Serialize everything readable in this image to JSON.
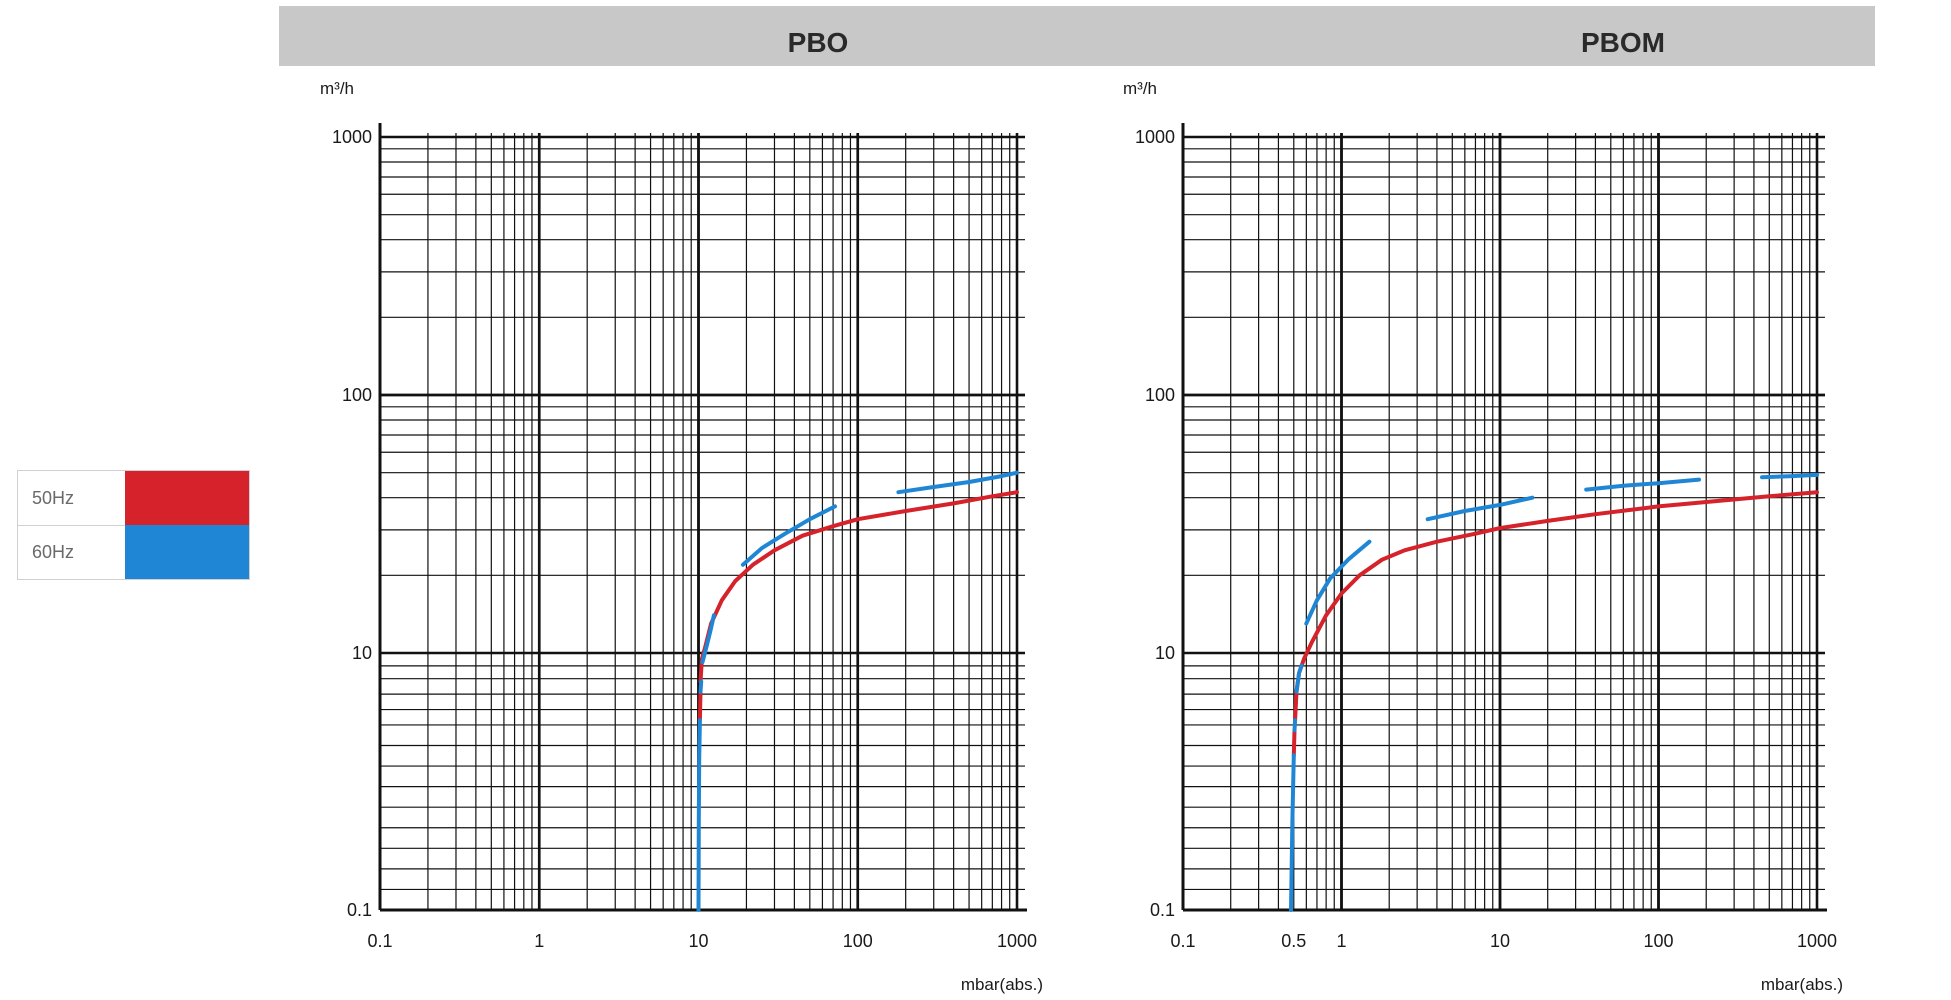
{
  "panels": [
    {
      "title": "PBO"
    },
    {
      "title": "PBOM"
    }
  ],
  "legend": [
    {
      "label": "50Hz",
      "color": "#d6222b"
    },
    {
      "label": "60Hz",
      "color": "#1e86d4"
    }
  ],
  "chart_data": [
    {
      "type": "line",
      "title": "PBO",
      "x_scale": "log",
      "y_scale": "log",
      "xlim": [
        0.1,
        1000
      ],
      "ylim": [
        0.1,
        1000
      ],
      "x_ticks": [
        "0.1",
        "1",
        "10",
        "100",
        "1000"
      ],
      "y_ticks": [
        "0.1",
        "10",
        "100",
        "1000"
      ],
      "xlabel": "mbar(abs.)",
      "ylabel": "m³/h",
      "grid": true,
      "series": [
        {
          "name": "50Hz",
          "color": "#d6222b",
          "segments": [
            [
              [
                10.2,
                3.0
              ],
              [
                10.3,
                5.0
              ]
            ],
            [
              [
                10.3,
                6.0
              ],
              [
                10.5,
                9.0
              ],
              [
                11,
                10.5
              ],
              [
                12,
                13
              ],
              [
                14,
                16
              ],
              [
                17,
                19
              ],
              [
                22,
                22
              ],
              [
                30,
                25
              ],
              [
                45,
                28.5
              ],
              [
                70,
                31
              ],
              [
                100,
                33
              ],
              [
                200,
                35.5
              ],
              [
                400,
                38
              ],
              [
                700,
                40.5
              ],
              [
                1000,
                42
              ]
            ]
          ]
        },
        {
          "name": "60Hz",
          "color": "#1e86d4",
          "segments": [
            [
              [
                10.0,
                0.1
              ],
              [
                10.05,
                0.5
              ],
              [
                10.1,
                1.5
              ],
              [
                10.2,
                3.0
              ]
            ],
            [
              [
                10.3,
                5.0
              ],
              [
                10.4,
                6.0
              ]
            ],
            [
              [
                10.6,
                8.5
              ],
              [
                11.2,
                10.5
              ],
              [
                12,
                12.5
              ],
              [
                12.5,
                14
              ]
            ],
            [
              [
                19,
                22
              ],
              [
                25,
                25.5
              ],
              [
                35,
                29
              ],
              [
                50,
                33
              ],
              [
                72,
                37
              ]
            ],
            [
              [
                180,
                42
              ],
              [
                300,
                44
              ],
              [
                500,
                46
              ],
              [
                800,
                48.5
              ],
              [
                1000,
                50
              ]
            ]
          ]
        }
      ]
    },
    {
      "type": "line",
      "title": "PBOM",
      "x_scale": "log",
      "y_scale": "log",
      "xlim": [
        0.1,
        1000
      ],
      "ylim": [
        0.1,
        1000
      ],
      "x_ticks": [
        "0.1",
        "0.5",
        "1",
        "10",
        "100",
        "1000"
      ],
      "y_ticks": [
        "0.1",
        "10",
        "100",
        "1000"
      ],
      "xlabel": "mbar(abs.)",
      "ylabel": "m³/h",
      "grid": true,
      "series": [
        {
          "name": "50Hz",
          "color": "#d6222b",
          "segments": [
            [
              [
                0.5,
                1.6
              ],
              [
                0.505,
                2.5
              ]
            ],
            [
              [
                0.51,
                3.0
              ],
              [
                0.52,
                5.0
              ],
              [
                0.54,
                7.0
              ],
              [
                0.58,
                9.0
              ],
              [
                0.65,
                11
              ],
              [
                0.8,
                14
              ],
              [
                1.0,
                17
              ],
              [
                1.3,
                20
              ],
              [
                1.8,
                23
              ],
              [
                2.5,
                25
              ],
              [
                4,
                27
              ],
              [
                7,
                29
              ],
              [
                10,
                30.5
              ],
              [
                20,
                32.5
              ],
              [
                40,
                34.5
              ],
              [
                100,
                37
              ],
              [
                200,
                38.5
              ],
              [
                500,
                40.5
              ],
              [
                1000,
                42
              ]
            ]
          ]
        },
        {
          "name": "60Hz",
          "color": "#1e86d4",
          "segments": [
            [
              [
                0.48,
                0.1
              ],
              [
                0.49,
                0.5
              ],
              [
                0.5,
                1.6
              ]
            ],
            [
              [
                0.505,
                2.5
              ],
              [
                0.51,
                3.0
              ]
            ],
            [
              [
                0.52,
                5.0
              ],
              [
                0.54,
                7.0
              ],
              [
                0.56,
                8.0
              ]
            ],
            [
              [
                0.6,
                13
              ],
              [
                0.7,
                16
              ],
              [
                0.85,
                19.5
              ],
              [
                1.1,
                23
              ],
              [
                1.5,
                27
              ]
            ],
            [
              [
                3.5,
                33
              ],
              [
                6,
                35.5
              ],
              [
                10,
                37.5
              ],
              [
                16,
                40
              ]
            ],
            [
              [
                35,
                43
              ],
              [
                60,
                44.5
              ],
              [
                100,
                45.5
              ],
              [
                180,
                47
              ]
            ],
            [
              [
                450,
                48
              ],
              [
                700,
                48.5
              ],
              [
                1000,
                49
              ]
            ]
          ]
        }
      ]
    }
  ]
}
